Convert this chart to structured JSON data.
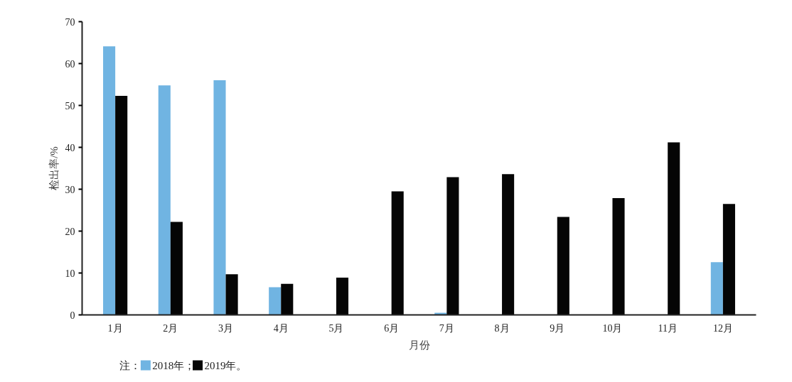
{
  "chart_data": {
    "type": "bar",
    "xlabel": "月份",
    "ylabel": "检出率/%",
    "categories": [
      "1月",
      "2月",
      "3月",
      "4月",
      "5月",
      "6月",
      "7月",
      "8月",
      "9月",
      "10月",
      "11月",
      "12月"
    ],
    "series": [
      {
        "name": "2018年；",
        "color": "#70b4e2",
        "values": [
          64.1,
          54.8,
          56.0,
          6.6,
          null,
          null,
          0.5,
          null,
          null,
          null,
          null,
          12.6
        ]
      },
      {
        "name": "2019年。",
        "color": "#050505",
        "values": [
          52.3,
          22.2,
          9.7,
          7.4,
          8.9,
          29.5,
          32.9,
          33.6,
          23.4,
          27.9,
          41.2,
          26.5
        ]
      }
    ],
    "ylim": [
      0,
      70
    ],
    "yticks": [
      0,
      10,
      20,
      30,
      40,
      50,
      60,
      70
    ],
    "grid": false,
    "legend": "bottom left",
    "annotations": [
      "注："
    ]
  }
}
